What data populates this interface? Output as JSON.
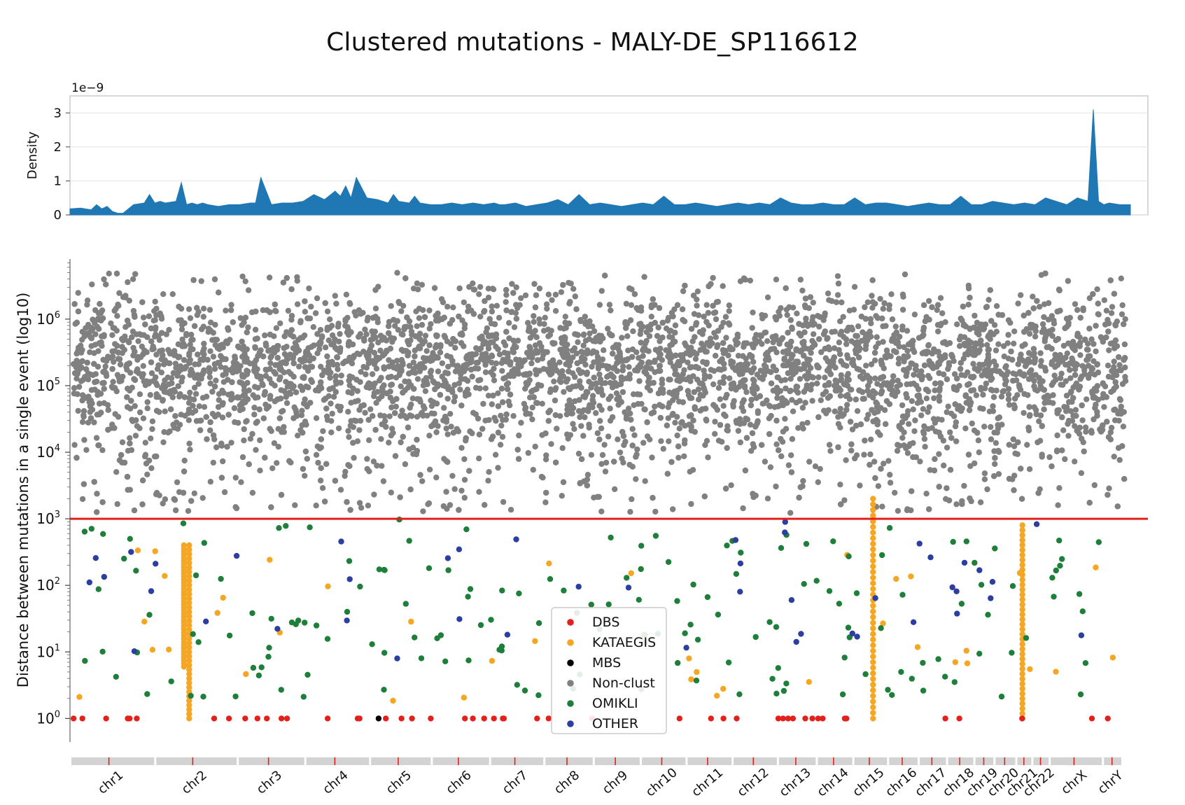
{
  "title": "Clustered mutations - MALY-DE_SP116612",
  "chart_data": [
    {
      "type": "area",
      "ylabel": "Density",
      "y_scale_label": "1e−9",
      "yticks": [
        "0",
        "1",
        "2",
        "3"
      ],
      "ylim": [
        0,
        3.5
      ],
      "grid": true,
      "color": "#1f77b4",
      "x": [
        0,
        0.01,
        0.02,
        0.025,
        0.03,
        0.035,
        0.04,
        0.045,
        0.05,
        0.06,
        0.07,
        0.075,
        0.08,
        0.085,
        0.09,
        0.1,
        0.105,
        0.11,
        0.115,
        0.12,
        0.125,
        0.13,
        0.14,
        0.15,
        0.16,
        0.17,
        0.175,
        0.18,
        0.19,
        0.2,
        0.21,
        0.22,
        0.23,
        0.24,
        0.25,
        0.255,
        0.26,
        0.265,
        0.27,
        0.28,
        0.29,
        0.3,
        0.305,
        0.31,
        0.32,
        0.325,
        0.33,
        0.34,
        0.35,
        0.36,
        0.37,
        0.38,
        0.39,
        0.4,
        0.405,
        0.41,
        0.42,
        0.43,
        0.44,
        0.45,
        0.46,
        0.47,
        0.48,
        0.49,
        0.5,
        0.51,
        0.52,
        0.53,
        0.54,
        0.55,
        0.56,
        0.57,
        0.58,
        0.59,
        0.6,
        0.61,
        0.62,
        0.63,
        0.64,
        0.65,
        0.66,
        0.67,
        0.68,
        0.69,
        0.7,
        0.71,
        0.72,
        0.73,
        0.74,
        0.75,
        0.76,
        0.77,
        0.78,
        0.79,
        0.8,
        0.81,
        0.82,
        0.83,
        0.84,
        0.85,
        0.86,
        0.87,
        0.88,
        0.89,
        0.9,
        0.91,
        0.92,
        0.93,
        0.94,
        0.95,
        0.96,
        0.965,
        0.97,
        0.975,
        0.98,
        0.99,
        1.0
      ],
      "values": [
        0.18,
        0.2,
        0.15,
        0.3,
        0.18,
        0.25,
        0.1,
        0.05,
        0.05,
        0.3,
        0.35,
        0.6,
        0.35,
        0.4,
        0.35,
        0.4,
        0.95,
        0.3,
        0.35,
        0.3,
        0.35,
        0.3,
        0.25,
        0.3,
        0.3,
        0.35,
        0.35,
        1.1,
        0.3,
        0.35,
        0.35,
        0.4,
        0.6,
        0.45,
        0.7,
        0.55,
        0.85,
        0.5,
        1.1,
        0.5,
        0.45,
        0.35,
        0.6,
        0.4,
        0.35,
        0.55,
        0.35,
        0.3,
        0.3,
        0.35,
        0.3,
        0.35,
        0.3,
        0.35,
        0.3,
        0.3,
        0.35,
        0.25,
        0.3,
        0.35,
        0.45,
        0.3,
        0.6,
        0.3,
        0.35,
        0.3,
        0.25,
        0.3,
        0.35,
        0.3,
        0.55,
        0.3,
        0.3,
        0.35,
        0.3,
        0.25,
        0.3,
        0.35,
        0.3,
        0.35,
        0.3,
        0.5,
        0.35,
        0.3,
        0.3,
        0.35,
        0.3,
        0.3,
        0.5,
        0.3,
        0.35,
        0.35,
        0.3,
        0.25,
        0.3,
        0.35,
        0.3,
        0.3,
        0.55,
        0.3,
        0.3,
        0.4,
        0.35,
        0.3,
        0.35,
        0.3,
        0.5,
        0.4,
        0.3,
        0.5,
        0.4,
        3.1,
        0.4,
        0.3,
        0.35,
        0.3,
        0.3
      ]
    },
    {
      "type": "scatter",
      "ylabel": "Distance between mutations in a single event (log10)",
      "yscale": "log",
      "yticks": [
        "10^0",
        "10^1",
        "10^2",
        "10^3",
        "10^4",
        "10^5",
        "10^6"
      ],
      "ylim": [
        0.5,
        8000000
      ],
      "threshold": {
        "value": 1000,
        "color": "#e3211c"
      },
      "chromosomes": [
        "chr1",
        "chr2",
        "chr3",
        "chr4",
        "chr5",
        "chr6",
        "chr7",
        "chr8",
        "chr9",
        "chr10",
        "chr11",
        "chr12",
        "chr13",
        "chr14",
        "chr15",
        "chr16",
        "chr17",
        "chr18",
        "chr19",
        "chr20",
        "chr21",
        "chr22",
        "chrX",
        "chrY"
      ],
      "chrom_lengths_mb": [
        249,
        242,
        198,
        190,
        181,
        171,
        159,
        145,
        138,
        134,
        135,
        133,
        114,
        107,
        102,
        90,
        83,
        80,
        59,
        64,
        47,
        51,
        156,
        57
      ],
      "legend": [
        {
          "label": "DBS",
          "color": "#e3211c"
        },
        {
          "label": "KATAEGIS",
          "color": "#f5a623"
        },
        {
          "label": "MBS",
          "color": "#000000"
        },
        {
          "label": "Non-clust",
          "color": "#808080"
        },
        {
          "label": "OMIKLI",
          "color": "#1e7f3a"
        },
        {
          "label": "OTHER",
          "color": "#2c3fa0"
        }
      ],
      "legend_placement": "center-bottom",
      "kataegis_columns": [
        {
          "pos": 0.105,
          "min": 6,
          "max": 400
        },
        {
          "pos": 0.11,
          "min": 1,
          "max": 400
        },
        {
          "pos": 0.76,
          "min": 1,
          "max": 2000
        },
        {
          "pos": 0.902,
          "min": 1,
          "max": 800
        }
      ],
      "nonclust_density_by_position": [
        [
          0.0,
          0.9
        ],
        [
          0.1,
          0.7
        ],
        [
          0.2,
          1.0
        ],
        [
          0.3,
          1.2
        ],
        [
          0.4,
          1.0
        ],
        [
          0.5,
          0.9
        ],
        [
          0.6,
          0.8
        ],
        [
          0.7,
          1.0
        ],
        [
          0.8,
          0.8
        ],
        [
          0.9,
          1.0
        ],
        [
          1.0,
          1.1
        ]
      ]
    }
  ]
}
